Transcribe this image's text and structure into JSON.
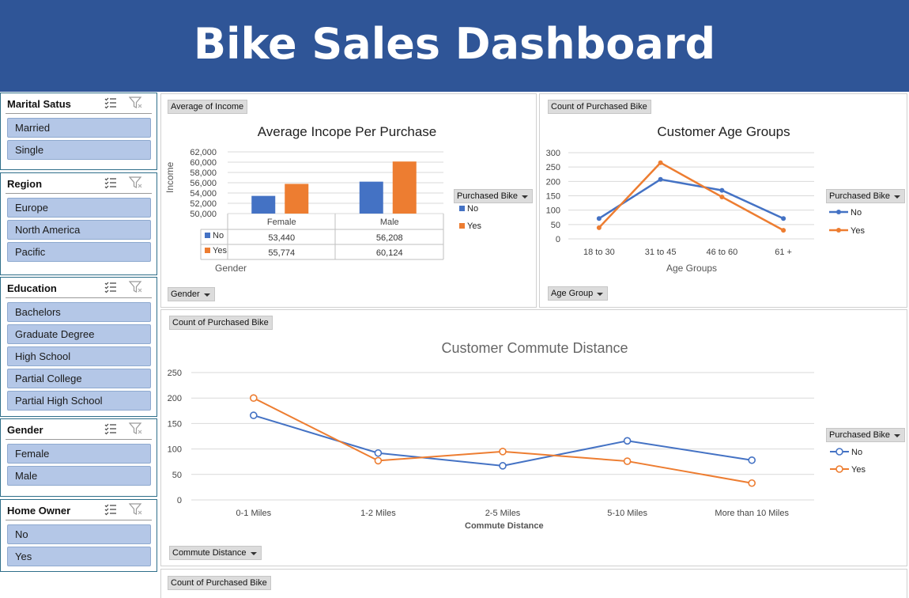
{
  "header": {
    "title": "Bike Sales Dashboard"
  },
  "slicers": {
    "marital": {
      "title": "Marital Satus",
      "items": [
        "Married",
        "Single"
      ]
    },
    "region": {
      "title": "Region",
      "items": [
        "Europe",
        "North America",
        "Pacific"
      ]
    },
    "education": {
      "title": "Education",
      "items": [
        "Bachelors",
        "Graduate Degree",
        "High School",
        "Partial College",
        "Partial High School"
      ]
    },
    "gender": {
      "title": "Gender",
      "items": [
        "Female",
        "Male"
      ]
    },
    "home_owner": {
      "title": "Home Owner",
      "items": [
        "No",
        "Yes"
      ]
    }
  },
  "income_chart": {
    "value_field": "Average of Income",
    "axis_field": "Gender",
    "legend_field": "Purchased Bike",
    "legend": [
      "No",
      "Yes"
    ]
  },
  "age_chart": {
    "value_field": "Count of Purchased Bike",
    "axis_field": "Age Group",
    "legend_field": "Purchased Bike",
    "legend": [
      "No",
      "Yes"
    ]
  },
  "commute_chart": {
    "value_field": "Count of Purchased Bike",
    "axis_field": "Commute Distance",
    "legend_field": "Purchased Bike",
    "legend": [
      "No",
      "Yes"
    ]
  },
  "bottom_panel": {
    "value_field": "Count of Purchased Bike"
  },
  "colors": {
    "banner": "#2f5597",
    "no_series": "#4472c4",
    "yes_series": "#ed7d31",
    "slicer_item": "#b4c7e7"
  },
  "chart_data": [
    {
      "type": "bar",
      "title": "Average Incope Per Purchase",
      "xlabel": "Gender",
      "ylabel": "Income",
      "ylim": [
        50000,
        62000
      ],
      "yticks": [
        "62,000",
        "60,000",
        "58,000",
        "56,000",
        "54,000",
        "52,000",
        "50,000"
      ],
      "categories": [
        "Female",
        "Male"
      ],
      "series": [
        {
          "name": "No",
          "values": [
            53440,
            56208
          ],
          "labels": [
            "53,440",
            "56,208"
          ]
        },
        {
          "name": "Yes",
          "values": [
            55774,
            60124
          ],
          "labels": [
            "55,774",
            "60,124"
          ]
        }
      ]
    },
    {
      "type": "line",
      "title": "Customer Age Groups",
      "xlabel": "Age Groups",
      "ylabel": "",
      "ylim": [
        0,
        300
      ],
      "yticks": [
        "300",
        "250",
        "200",
        "150",
        "100",
        "50",
        "0"
      ],
      "categories": [
        "18 to 30",
        "31 to 45",
        "46 to 60",
        "61 +"
      ],
      "series": [
        {
          "name": "No",
          "values": [
            71,
            207,
            169,
            71
          ]
        },
        {
          "name": "Yes",
          "values": [
            39,
            265,
            146,
            30
          ]
        }
      ]
    },
    {
      "type": "line",
      "title": "Customer Commute Distance",
      "xlabel": "Commute Distance",
      "ylabel": "",
      "ylim": [
        0,
        250
      ],
      "yticks": [
        "250",
        "200",
        "150",
        "100",
        "50",
        "0"
      ],
      "categories": [
        "0-1 Miles",
        "1-2 Miles",
        "2-5 Miles",
        "5-10 Miles",
        "More than 10 Miles"
      ],
      "series": [
        {
          "name": "No",
          "values": [
            166,
            92,
            67,
            116,
            78
          ]
        },
        {
          "name": "Yes",
          "values": [
            200,
            77,
            95,
            76,
            33
          ]
        }
      ]
    }
  ]
}
